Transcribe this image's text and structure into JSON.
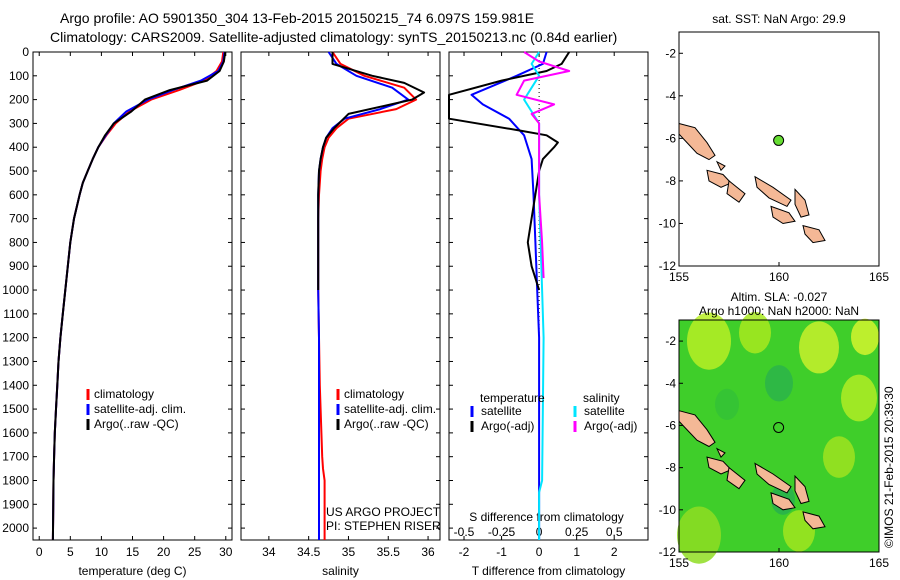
{
  "header": {
    "line1": "Argo profile: AO 5901350_304 13-Feb-2015 20150215_74 6.097S 159.981E",
    "line2": "Climatology: CARS2009. Satellite-adjusted climatology: synTS_20150213.nc (0.84d earlier)"
  },
  "side_note": "©IMOS 21-Feb-2015 20:39:30",
  "credit": {
    "line1": "US ARGO PROJECT",
    "line2": "PI: STEPHEN RISER"
  },
  "colors": {
    "climatology": "#ff0000",
    "satellite": "#0000ff",
    "argo": "#000000",
    "sat_salinity": "#00e5ff",
    "argo_salinity": "#ff00ff",
    "land": "#f4b896",
    "float_marker": "#66dd33"
  },
  "chart_data": [
    {
      "id": "temperature",
      "type": "line",
      "xlabel": "temperature (deg C)",
      "ylabel": "",
      "xlim": [
        -1,
        31
      ],
      "ylim": [
        2050,
        0
      ],
      "xticks": [
        0,
        5,
        10,
        15,
        20,
        25,
        30
      ],
      "yticks": [
        0,
        100,
        200,
        300,
        400,
        500,
        600,
        700,
        800,
        900,
        1000,
        1100,
        1200,
        1300,
        1400,
        1500,
        1600,
        1700,
        1800,
        1900,
        2000
      ],
      "legend": [
        "climatology",
        "satellite-adj. clim.",
        "Argo(..raw -QC)"
      ],
      "series": [
        {
          "name": "climatology",
          "color": "#ff0000",
          "x": [
            29.6,
            29.4,
            28.5,
            26.5,
            22.5,
            18.0,
            14.5,
            12.3,
            10.8,
            9.5,
            8.6,
            7.8,
            7.0,
            6.5,
            5.6,
            5.0,
            4.6,
            4.2,
            3.8,
            3.4,
            3.1,
            2.9,
            2.7,
            2.5,
            2.4,
            2.3,
            2.2
          ],
          "y": [
            0,
            40,
            80,
            120,
            160,
            200,
            250,
            300,
            350,
            400,
            450,
            500,
            550,
            600,
            700,
            800,
            900,
            1000,
            1100,
            1200,
            1300,
            1400,
            1500,
            1600,
            1700,
            1800,
            2050
          ]
        },
        {
          "name": "satellite-adj. clim.",
          "color": "#0000ff",
          "x": [
            29.8,
            29.6,
            28.8,
            26.0,
            21.5,
            17.5,
            14.0,
            12.0,
            10.7,
            9.5,
            8.6,
            7.8,
            7.0,
            6.5,
            5.6,
            5.0,
            4.6,
            4.2,
            3.8,
            3.4,
            3.1,
            2.9,
            2.7,
            2.5,
            2.4,
            2.3,
            2.2
          ],
          "y": [
            0,
            40,
            80,
            120,
            160,
            200,
            250,
            300,
            350,
            400,
            450,
            500,
            550,
            600,
            700,
            800,
            900,
            1000,
            1100,
            1200,
            1300,
            1400,
            1500,
            1600,
            1700,
            1800,
            2050
          ]
        },
        {
          "name": "Argo(..raw -QC)",
          "color": "#000000",
          "x": [
            29.9,
            29.7,
            29.0,
            27.0,
            21.0,
            17.0,
            14.8,
            12.0,
            10.6,
            9.5,
            8.6,
            7.8,
            7.0,
            6.5,
            5.6,
            5.0,
            4.6,
            4.2,
            3.8,
            3.4,
            3.1,
            2.9,
            2.7,
            2.5,
            2.4,
            2.3,
            2.2
          ],
          "y": [
            0,
            40,
            80,
            120,
            160,
            200,
            250,
            300,
            350,
            400,
            450,
            500,
            550,
            600,
            700,
            800,
            900,
            1000,
            1100,
            1200,
            1300,
            1400,
            1500,
            1600,
            1700,
            1800,
            2050
          ]
        }
      ]
    },
    {
      "id": "salinity",
      "type": "line",
      "xlabel": "salinity",
      "xlim": [
        33.65,
        36.15
      ],
      "ylim": [
        2050,
        0
      ],
      "xticks": [
        34,
        34.5,
        35,
        35.5,
        36
      ],
      "xticklabels": [
        "34",
        "34.5",
        "35",
        "35.5",
        "36"
      ],
      "legend": [
        "climatology",
        "satellite-adj. clim.",
        "Argo(..raw -QC)"
      ],
      "series": [
        {
          "name": "climatology",
          "color": "#ff0000",
          "x": [
            34.8,
            34.9,
            35.2,
            35.7,
            35.85,
            35.6,
            35.0,
            34.85,
            34.75,
            34.7,
            34.67,
            34.65,
            34.63,
            34.62,
            34.62,
            34.62,
            34.62,
            34.63,
            34.64,
            34.65,
            34.66,
            34.67,
            34.68,
            34.7,
            34.7
          ],
          "y": [
            0,
            50,
            100,
            150,
            200,
            240,
            280,
            320,
            360,
            400,
            450,
            500,
            600,
            700,
            800,
            900,
            1000,
            1200,
            1400,
            1500,
            1600,
            1700,
            1750,
            1800,
            2050
          ]
        },
        {
          "name": "satellite-adj. clim.",
          "color": "#0000ff",
          "x": [
            34.75,
            34.85,
            35.1,
            35.55,
            35.75,
            35.4,
            34.95,
            34.8,
            34.72,
            34.68,
            34.65,
            34.63,
            34.62,
            34.62,
            34.62,
            34.62,
            34.62,
            34.63,
            34.63,
            34.63,
            34.63,
            34.63,
            34.63,
            34.63
          ],
          "y": [
            0,
            50,
            100,
            150,
            200,
            240,
            280,
            320,
            360,
            400,
            450,
            500,
            600,
            700,
            800,
            900,
            1000,
            1200,
            1400,
            1500,
            1600,
            1700,
            1800,
            2050
          ]
        },
        {
          "name": "Argo(..raw -QC)",
          "color": "#000000",
          "x": [
            34.8,
            34.8,
            35.3,
            35.7,
            35.95,
            35.8,
            35.0,
            34.82,
            34.72,
            34.68,
            34.65,
            34.63,
            34.62,
            34.62,
            34.62,
            34.62,
            34.62
          ],
          "y": [
            0,
            50,
            100,
            130,
            170,
            200,
            260,
            320,
            360,
            400,
            450,
            500,
            600,
            700,
            800,
            900,
            1000
          ]
        }
      ]
    },
    {
      "id": "difference",
      "type": "line",
      "xlabel": "T difference from climatology",
      "x2label": "S difference from climatology",
      "xlim": [
        -2.4,
        2.9
      ],
      "ylim": [
        2050,
        0
      ],
      "xticks": [
        -2,
        -1,
        0,
        1,
        2
      ],
      "x2lim": [
        -0.6,
        0.725
      ],
      "x2ticks": [
        -0.5,
        -0.25,
        0,
        0.25,
        0.5
      ],
      "x2ticklabels": [
        "-0.5",
        "-0.25",
        "0",
        "0.25",
        "0.5"
      ],
      "legend_title_left": "temperature",
      "legend_title_right": "salinity",
      "legend": [
        "satellite",
        "Argo(-adj)",
        "satellite",
        "Argo(-adj)"
      ],
      "series": [
        {
          "name": "satellite",
          "axis": "T",
          "color": "#0000ff",
          "x": [
            0.2,
            0.1,
            -0.6,
            -1.2,
            -1.8,
            -1.5,
            -0.8,
            -0.4,
            -0.2,
            -0.15,
            -0.1,
            -0.05,
            0.0,
            0.0,
            0.0
          ],
          "y": [
            0,
            50,
            100,
            140,
            180,
            220,
            280,
            350,
            450,
            600,
            800,
            1000,
            1200,
            1600,
            2050
          ]
        },
        {
          "name": "Argo(-adj)",
          "axis": "T",
          "color": "#000000",
          "x": [
            0.8,
            0.6,
            0.2,
            -1.0,
            -2.4,
            -2.4,
            -0.5,
            0.2,
            0.5,
            0.4,
            0.1,
            0.0,
            -0.3,
            -0.2,
            0.0
          ],
          "y": [
            0,
            50,
            80,
            120,
            180,
            280,
            330,
            350,
            380,
            400,
            450,
            500,
            800,
            900,
            1000
          ]
        },
        {
          "name": "satellite",
          "axis": "S",
          "color": "#00e5ff",
          "x": [
            0.0,
            -0.05,
            0.0,
            -0.05,
            -0.1,
            -0.05,
            0.0,
            0.0,
            0.0,
            0.0,
            0.01,
            0.02,
            0.03,
            0.02,
            0.0,
            0.0
          ],
          "y": [
            0,
            50,
            100,
            150,
            200,
            250,
            300,
            350,
            450,
            600,
            800,
            1000,
            1200,
            1800,
            1850,
            2050
          ]
        },
        {
          "name": "Argo(-adj)",
          "axis": "S",
          "color": "#ff00ff",
          "x": [
            -0.1,
            0.0,
            0.2,
            -0.1,
            -0.15,
            0.1,
            -0.05,
            0.0,
            0.0,
            0.0,
            0.0,
            0.02,
            0.03
          ],
          "y": [
            0,
            40,
            80,
            120,
            180,
            220,
            260,
            300,
            350,
            450,
            600,
            800,
            950
          ]
        }
      ]
    },
    {
      "id": "map-sst",
      "type": "scatter",
      "title": "sat. SST: NaN Argo: 29.9",
      "xlim": [
        155,
        165
      ],
      "ylim": [
        -12,
        -1
      ],
      "xticks": [
        155,
        160,
        165
      ],
      "yticks": [
        -2,
        -4,
        -6,
        -8,
        -10,
        -12
      ],
      "points": [
        {
          "lon": 159.981,
          "lat": -6.097
        }
      ]
    },
    {
      "id": "map-sla",
      "type": "heatmap",
      "title": "Altim. SLA: -0.027",
      "subtitle": "Argo h1000: NaN h2000: NaN",
      "xlim": [
        155,
        165
      ],
      "ylim": [
        -12,
        -1
      ],
      "xticks": [
        155,
        160,
        165
      ],
      "yticks": [
        -2,
        -4,
        -6,
        -8,
        -10,
        -12
      ],
      "points": [
        {
          "lon": 159.981,
          "lat": -6.097
        }
      ]
    }
  ]
}
